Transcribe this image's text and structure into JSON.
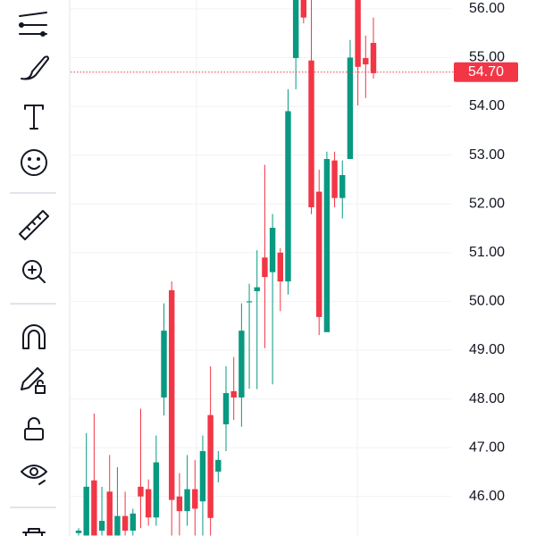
{
  "chart_data": {
    "type": "candlestick",
    "categories": [
      null,
      null,
      null,
      null,
      null,
      null,
      null,
      null,
      null,
      null,
      null,
      null,
      null,
      null,
      null,
      null,
      null,
      null,
      null,
      null,
      null,
      null,
      null,
      null,
      null,
      null,
      null,
      null,
      null,
      null,
      null,
      null,
      null,
      null,
      null,
      null,
      null,
      null,
      null
    ],
    "open": [
      45.25,
      45.2,
      46.33,
      45.3,
      46.1,
      45.2,
      45.6,
      45.3,
      46.2,
      46.15,
      45.57,
      48.03,
      50.23,
      46.0,
      45.7,
      46.15,
      45.9,
      47.67,
      46.51,
      47.48,
      48.16,
      48.03,
      49.98,
      50.21,
      50.9,
      50.6,
      51.0,
      50.41,
      54.99,
      56.18,
      54.94,
      52.25,
      49.37,
      52.89,
      52.12,
      52.92,
      56.18,
      54.99,
      55.3
    ],
    "high": [
      45.35,
      47.3,
      47.7,
      46.2,
      46.85,
      46.6,
      46.1,
      45.75,
      47.8,
      46.35,
      47.25,
      49.96,
      50.41,
      46.48,
      46.85,
      46.75,
      47.25,
      48.67,
      46.93,
      48.67,
      48.86,
      49.96,
      50.36,
      51.05,
      52.8,
      51.79,
      51.09,
      54.35,
      56.18,
      56.18,
      56.18,
      52.7,
      53.07,
      53.07,
      52.89,
      55.36,
      56.18,
      55.45,
      55.82
    ],
    "low": [
      45.2,
      45.2,
      45.2,
      45.2,
      45.2,
      45.2,
      45.2,
      45.2,
      45.35,
      45.4,
      45.4,
      47.66,
      45.2,
      45.2,
      45.4,
      45.2,
      45.2,
      45.2,
      46.29,
      46.93,
      47.57,
      47.43,
      48.21,
      48.2,
      49.04,
      48.3,
      49.8,
      50.14,
      54.35,
      55.7,
      51.79,
      49.31,
      49.37,
      51.93,
      51.7,
      52.92,
      54.02,
      54.17,
      54.57
    ],
    "close": [
      45.3,
      46.2,
      45.2,
      45.5,
      45.2,
      45.6,
      45.3,
      45.65,
      46.0,
      45.57,
      46.7,
      49.4,
      45.93,
      45.7,
      46.15,
      45.75,
      46.93,
      45.56,
      46.75,
      48.12,
      48.03,
      49.4,
      50.0,
      50.29,
      50.5,
      51.51,
      50.41,
      53.9,
      56.18,
      55.82,
      51.93,
      49.68,
      52.92,
      52.12,
      52.59,
      55.0,
      54.81,
      54.86,
      54.68
    ],
    "up_color": "#089981",
    "down_color": "#f23645",
    "ylim": [
      45.19,
      56.18
    ],
    "yticks": [
      {
        "value": 46,
        "label": "46.00"
      },
      {
        "value": 47,
        "label": "47.00"
      },
      {
        "value": 48,
        "label": "48.00"
      },
      {
        "value": 49,
        "label": "49.00"
      },
      {
        "value": 50,
        "label": "50.00"
      },
      {
        "value": 51,
        "label": "51.00"
      },
      {
        "value": 52,
        "label": "52.00"
      },
      {
        "value": 53,
        "label": "53.00"
      },
      {
        "value": 54,
        "label": "54.00"
      },
      {
        "value": 55,
        "label": "55.00"
      },
      {
        "value": 56,
        "label": "56.00"
      }
    ],
    "grid": true,
    "price_line": {
      "value": 54.7,
      "label": "54.70",
      "color": "#f23645"
    }
  }
}
